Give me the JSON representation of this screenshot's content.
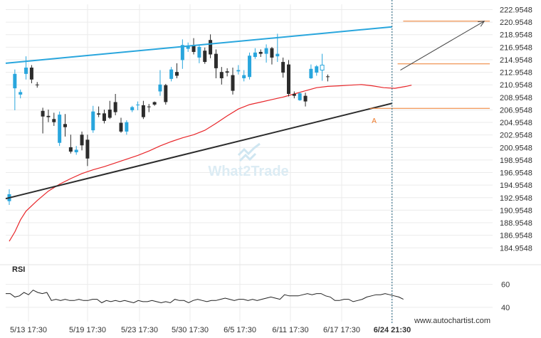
{
  "chart_data": {
    "type": "candlestick",
    "watermark": "What2Trade",
    "source": "www.autochartist.com",
    "price_axis": {
      "ticks": [
        "222.9548",
        "220.9548",
        "218.9548",
        "216.9548",
        "214.9548",
        "212.9548",
        "210.9548",
        "208.9548",
        "206.9548",
        "204.9548",
        "202.9548",
        "200.9548",
        "198.9548",
        "196.9548",
        "194.9548",
        "192.9548",
        "190.9548",
        "188.9548",
        "186.9548",
        "184.9548"
      ],
      "range": [
        183.4,
        223.8
      ]
    },
    "time_axis": {
      "labels": [
        "5/13 17:30",
        "5/19 17:30",
        "5/23 17:30",
        "5/30 17:30",
        "6/5 17:30",
        "6/11 17:30",
        "6/17 17:30",
        "6/24 21:30"
      ],
      "current_label": "6/24 21:30"
    },
    "candles": [
      {
        "o": 192.4,
        "h": 194.3,
        "l": 191.8,
        "c": 193.5
      },
      {
        "o": 210.4,
        "h": 213.4,
        "l": 206.9,
        "c": 212.7
      },
      {
        "o": 209.4,
        "h": 210.2,
        "l": 208.8,
        "c": 209.8
      },
      {
        "o": 212.7,
        "h": 215.5,
        "l": 211.8,
        "c": 213.7
      },
      {
        "o": 213.7,
        "h": 214.1,
        "l": 211.2,
        "c": 211.8
      },
      {
        "o": 211.0,
        "h": 211.4,
        "l": 210.5,
        "c": 210.9
      },
      {
        "o": 206.8,
        "h": 207.3,
        "l": 203.2,
        "c": 205.9
      },
      {
        "o": 206.0,
        "h": 207.0,
        "l": 205.0,
        "c": 205.8
      },
      {
        "o": 205.5,
        "h": 206.5,
        "l": 204.4,
        "c": 205.0
      },
      {
        "o": 201.7,
        "h": 206.7,
        "l": 201.2,
        "c": 206.2
      },
      {
        "o": 204.7,
        "h": 206.3,
        "l": 202.7,
        "c": 204.2
      },
      {
        "o": 201.0,
        "h": 203.0,
        "l": 200.0,
        "c": 200.3
      },
      {
        "o": 200.2,
        "h": 201.2,
        "l": 199.8,
        "c": 200.6
      },
      {
        "o": 203.0,
        "h": 203.5,
        "l": 200.5,
        "c": 201.3
      },
      {
        "o": 202.2,
        "h": 203.0,
        "l": 198.0,
        "c": 199.2
      },
      {
        "o": 203.7,
        "h": 207.6,
        "l": 203.3,
        "c": 206.7
      },
      {
        "o": 206.4,
        "h": 207.5,
        "l": 205.8,
        "c": 206.2
      },
      {
        "o": 206.4,
        "h": 207.0,
        "l": 204.8,
        "c": 205.2
      },
      {
        "o": 207.0,
        "h": 208.4,
        "l": 205.5,
        "c": 205.7
      },
      {
        "o": 208.2,
        "h": 209.5,
        "l": 206.1,
        "c": 206.6
      },
      {
        "o": 204.9,
        "h": 205.7,
        "l": 203.3,
        "c": 203.5
      },
      {
        "o": 203.5,
        "h": 205.3,
        "l": 203.0,
        "c": 205.0
      },
      {
        "o": 206.9,
        "h": 207.6,
        "l": 206.6,
        "c": 207.4
      },
      {
        "o": 207.7,
        "h": 208.3,
        "l": 206.9,
        "c": 207.8
      },
      {
        "o": 207.7,
        "h": 208.4,
        "l": 205.5,
        "c": 205.8
      },
      {
        "o": 207.5,
        "h": 207.9,
        "l": 206.6,
        "c": 207.4
      },
      {
        "o": 208.2,
        "h": 208.3,
        "l": 207.6,
        "c": 207.8
      },
      {
        "o": 209.9,
        "h": 213.3,
        "l": 209.2,
        "c": 211.0
      },
      {
        "o": 210.9,
        "h": 211.1,
        "l": 207.8,
        "c": 208.2
      },
      {
        "o": 211.9,
        "h": 213.8,
        "l": 211.5,
        "c": 213.4
      },
      {
        "o": 213.0,
        "h": 214.4,
        "l": 212.0,
        "c": 212.4
      },
      {
        "o": 214.9,
        "h": 218.2,
        "l": 213.5,
        "c": 217.3
      },
      {
        "o": 216.7,
        "h": 217.7,
        "l": 216.2,
        "c": 217.2
      },
      {
        "o": 217.3,
        "h": 218.4,
        "l": 215.8,
        "c": 216.2
      },
      {
        "o": 215.3,
        "h": 217.3,
        "l": 214.4,
        "c": 217.0
      },
      {
        "o": 216.4,
        "h": 216.9,
        "l": 214.3,
        "c": 214.6
      },
      {
        "o": 218.1,
        "h": 219.0,
        "l": 215.2,
        "c": 215.8
      },
      {
        "o": 215.9,
        "h": 216.6,
        "l": 212.0,
        "c": 213.6
      },
      {
        "o": 213.0,
        "h": 213.8,
        "l": 211.0,
        "c": 212.0
      },
      {
        "o": 213.1,
        "h": 213.6,
        "l": 212.3,
        "c": 212.9
      },
      {
        "o": 212.5,
        "h": 213.7,
        "l": 209.4,
        "c": 210.0
      },
      {
        "o": 213.1,
        "h": 214.1,
        "l": 212.6,
        "c": 213.3
      },
      {
        "o": 212.0,
        "h": 213.3,
        "l": 211.5,
        "c": 212.5
      },
      {
        "o": 212.2,
        "h": 216.1,
        "l": 211.8,
        "c": 215.6
      },
      {
        "o": 215.4,
        "h": 216.8,
        "l": 215.1,
        "c": 216.1
      },
      {
        "o": 216.2,
        "h": 216.6,
        "l": 215.4,
        "c": 215.9
      },
      {
        "o": 215.9,
        "h": 217.4,
        "l": 214.5,
        "c": 216.8
      },
      {
        "o": 216.8,
        "h": 217.0,
        "l": 214.2,
        "c": 215.3
      },
      {
        "o": 215.5,
        "h": 219.1,
        "l": 214.6,
        "c": 215.9
      },
      {
        "o": 214.6,
        "h": 215.3,
        "l": 212.1,
        "c": 212.9
      },
      {
        "o": 214.2,
        "h": 214.9,
        "l": 209.1,
        "c": 209.5
      },
      {
        "o": 209.5,
        "h": 209.9,
        "l": 208.8,
        "c": 209.2
      },
      {
        "o": 208.5,
        "h": 209.8,
        "l": 208.4,
        "c": 209.6
      },
      {
        "o": 209.2,
        "h": 209.7,
        "l": 207.5,
        "c": 208.3
      },
      {
        "o": 212.0,
        "h": 214.2,
        "l": 211.9,
        "c": 213.5
      },
      {
        "o": 212.9,
        "h": 214.1,
        "l": 212.4,
        "c": 213.9
      },
      {
        "o": 213.3,
        "h": 215.9,
        "l": 211.6,
        "c": 214.1,
        "style": "hollow"
      },
      {
        "o": 212.3,
        "h": 212.6,
        "l": 211.5,
        "c": 212.2
      }
    ],
    "moving_average": {
      "color": "#e8262a",
      "points": [
        [
          0,
          186.0
        ],
        [
          1,
          187.5
        ],
        [
          2,
          189.4
        ],
        [
          3,
          190.8
        ],
        [
          5,
          192.5
        ],
        [
          7,
          194.0
        ],
        [
          9,
          195.1
        ],
        [
          11,
          196.0
        ],
        [
          13,
          196.8
        ],
        [
          15,
          197.4
        ],
        [
          17,
          197.9
        ],
        [
          19,
          198.5
        ],
        [
          21,
          199.1
        ],
        [
          23,
          199.7
        ],
        [
          25,
          200.4
        ],
        [
          27,
          201.2
        ],
        [
          29,
          201.9
        ],
        [
          31,
          202.5
        ],
        [
          33,
          203.0
        ],
        [
          35,
          203.7
        ],
        [
          37,
          204.8
        ],
        [
          39,
          206.0
        ],
        [
          41,
          207.1
        ],
        [
          43,
          207.8
        ],
        [
          45,
          208.2
        ],
        [
          47,
          208.6
        ],
        [
          49,
          209.0
        ],
        [
          51,
          209.5
        ],
        [
          53,
          210.0
        ],
        [
          55,
          210.5
        ],
        [
          57,
          210.7
        ],
        [
          59,
          210.8
        ],
        [
          61,
          210.9
        ],
        [
          63,
          211.0
        ],
        [
          65,
          210.8
        ],
        [
          67,
          210.5
        ],
        [
          69,
          210.4
        ],
        [
          71,
          210.7
        ],
        [
          72,
          210.9
        ]
      ]
    },
    "trend_lines": [
      {
        "name": "resistance",
        "color": "#29a6dd",
        "from": [
          0,
          214.4
        ],
        "to": [
          68.5,
          220.2
        ]
      },
      {
        "name": "support",
        "color": "#2c2c2c",
        "from": [
          0,
          192.8
        ],
        "to": [
          68.5,
          208.0
        ]
      }
    ],
    "levels": [
      {
        "price": 221.1,
        "color": "#ee7a2a",
        "from": 70.5,
        "to": 86
      },
      {
        "price": 214.3,
        "color": "#ee7a2a",
        "from": 69.5,
        "to": 86
      },
      {
        "price": 207.2,
        "color": "#ee7a2a",
        "from": 64.5,
        "to": 86
      }
    ],
    "forecast_arrow": {
      "color": "#444444",
      "from": [
        70.0,
        213.3
      ],
      "to": [
        85.0,
        221.1
      ]
    },
    "point_marker": {
      "label": "A",
      "color": "#ee7a2a",
      "index": 65.3,
      "price": 206.2
    },
    "current_index": 68.5,
    "indicator": {
      "name": "RSI",
      "ticks": [
        60,
        40
      ],
      "range": [
        35,
        66
      ],
      "values": [
        52,
        52,
        49,
        50,
        53,
        51,
        55,
        53,
        52,
        53,
        46,
        47,
        46,
        47,
        46,
        46,
        47,
        46,
        46,
        47,
        47,
        44,
        46,
        45,
        46,
        45,
        46,
        45,
        44,
        46,
        45,
        45,
        46,
        45,
        44,
        45,
        44,
        47,
        46,
        46,
        44,
        46,
        47,
        46,
        45,
        46,
        46,
        47,
        48,
        47,
        46,
        47,
        47,
        46,
        47,
        46,
        47,
        48,
        49,
        48,
        47,
        51,
        50,
        50,
        50,
        51,
        52,
        51,
        52,
        52,
        50,
        49,
        46,
        46,
        47,
        47,
        45,
        46,
        47,
        49,
        50,
        51,
        51,
        52,
        51,
        50,
        49,
        47
      ]
    }
  }
}
